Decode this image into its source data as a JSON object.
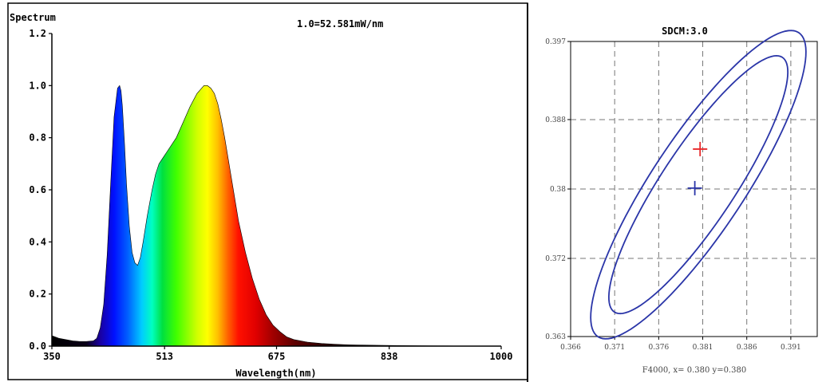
{
  "chart_data": [
    {
      "type": "area",
      "title": "Spectrum",
      "annotation": "1.0=52.581mW/nm",
      "xlabel": "Wavelength(nm)",
      "ylabel": "",
      "xlim": [
        350,
        1000
      ],
      "ylim": [
        0,
        1.2
      ],
      "xticks": [
        "350",
        "513",
        "675",
        "838",
        "1000"
      ],
      "yticks": [
        "0.0",
        "0.2",
        "0.4",
        "0.6",
        "0.8",
        "1.0",
        "1.2"
      ],
      "grid": false,
      "fill": "wavelength-colored spectrum",
      "x": [
        350,
        360,
        370,
        380,
        390,
        400,
        410,
        415,
        420,
        425,
        430,
        435,
        440,
        445,
        448,
        450,
        452,
        455,
        458,
        462,
        466,
        470,
        474,
        478,
        482,
        488,
        495,
        500,
        505,
        510,
        515,
        520,
        530,
        540,
        550,
        560,
        570,
        575,
        580,
        585,
        590,
        595,
        600,
        605,
        610,
        615,
        620,
        630,
        640,
        650,
        660,
        670,
        680,
        690,
        700,
        720,
        740,
        760,
        780,
        800,
        850,
        900,
        1000
      ],
      "y": [
        0.04,
        0.03,
        0.025,
        0.02,
        0.018,
        0.018,
        0.02,
        0.03,
        0.07,
        0.16,
        0.35,
        0.62,
        0.88,
        0.99,
        1.0,
        0.98,
        0.92,
        0.78,
        0.62,
        0.46,
        0.36,
        0.32,
        0.31,
        0.34,
        0.4,
        0.5,
        0.6,
        0.66,
        0.7,
        0.72,
        0.74,
        0.76,
        0.8,
        0.86,
        0.92,
        0.97,
        1.0,
        1.0,
        0.99,
        0.97,
        0.93,
        0.87,
        0.8,
        0.72,
        0.64,
        0.56,
        0.48,
        0.36,
        0.26,
        0.18,
        0.12,
        0.08,
        0.055,
        0.035,
        0.025,
        0.015,
        0.01,
        0.007,
        0.005,
        0.004,
        0.002,
        0.001,
        0.0
      ]
    },
    {
      "type": "scatter",
      "title": "SDCM:3.0",
      "xlabel": "F4000, x= 0.380 y=0.380",
      "ylabel": "",
      "xlim": [
        0.366,
        0.394
      ],
      "ylim": [
        0.363,
        0.397
      ],
      "xticks": [
        "0.366",
        "0.371",
        "0.376",
        "0.381",
        "0.386",
        "0.391"
      ],
      "yticks": [
        "0.363",
        "0.372",
        "0.38",
        "0.388",
        "0.397"
      ],
      "grid": true,
      "ellipses": [
        {
          "center": [
            0.3805,
            0.3805
          ],
          "semi_major": 0.0209,
          "semi_minor": 0.0053,
          "angle_deg": 57
        },
        {
          "center": [
            0.3805,
            0.3805
          ],
          "semi_major": 0.0175,
          "semi_minor": 0.0042,
          "angle_deg": 57
        }
      ],
      "markers": [
        {
          "name": "red-plus",
          "color": "#e8282a",
          "x": 0.3807,
          "y": 0.3846
        },
        {
          "name": "blue-plus",
          "color": "#2a35a8",
          "x": 0.3801,
          "y": 0.3801
        }
      ],
      "ellipse_color": "#2a35a8"
    }
  ],
  "colors": {
    "grid": "#777777",
    "ellipse": "#2a35a8",
    "red_marker": "#e8282a",
    "blue_marker": "#2a35a8"
  }
}
